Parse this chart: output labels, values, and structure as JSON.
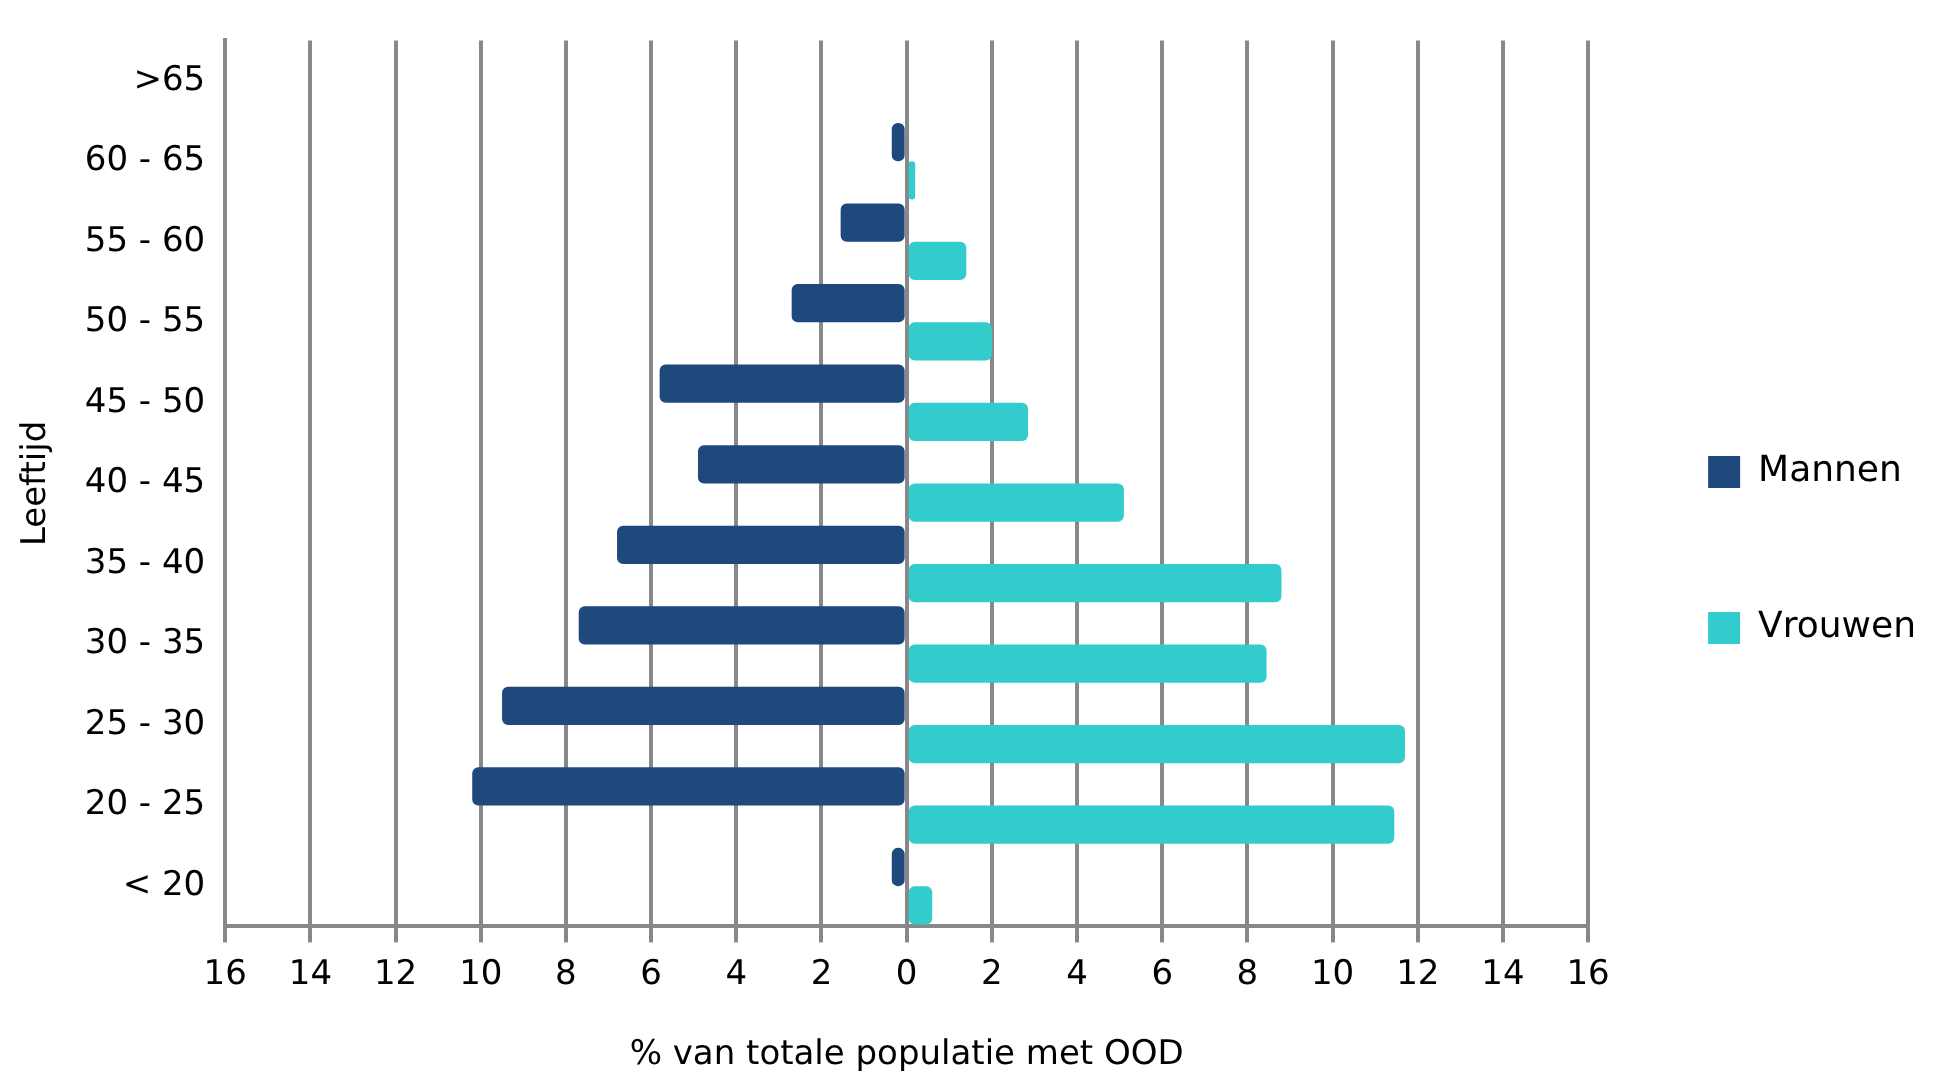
{
  "chart_data": {
    "type": "bar",
    "orientation": "horizontal",
    "xlabel": "% van totale populatie met OOD",
    "ylabel": "Leeftijd",
    "categories": [
      ">65",
      "60 - 65",
      "55 - 60",
      "50 - 55",
      "45 - 50",
      "40 - 45",
      "35 - 40",
      "30 - 35",
      "25 - 30",
      "20 - 25",
      "< 20"
    ],
    "series": [
      {
        "name": "Mannen",
        "color": "#1f497d",
        "values": [
          0,
          -0.35,
          -1.55,
          -2.7,
          -5.8,
          -4.9,
          -6.8,
          -7.7,
          -9.5,
          -10.2,
          -0.35
        ]
      },
      {
        "name": "Vrouwen",
        "color": "#33cccc",
        "values": [
          0,
          0.2,
          1.4,
          2.0,
          2.85,
          5.1,
          8.8,
          8.45,
          11.7,
          11.45,
          0.6
        ]
      }
    ],
    "xlim": [
      -16,
      16
    ],
    "xticks": [
      {
        "value": -16,
        "label": "16"
      },
      {
        "value": -14,
        "label": "14"
      },
      {
        "value": -12,
        "label": "12"
      },
      {
        "value": -10,
        "label": "10"
      },
      {
        "value": -8,
        "label": "8"
      },
      {
        "value": -6,
        "label": "6"
      },
      {
        "value": -4,
        "label": "4"
      },
      {
        "value": -2,
        "label": "2"
      },
      0,
      2,
      4,
      6,
      8,
      10,
      12,
      14,
      16
    ],
    "grid": "x",
    "legend": "right"
  }
}
